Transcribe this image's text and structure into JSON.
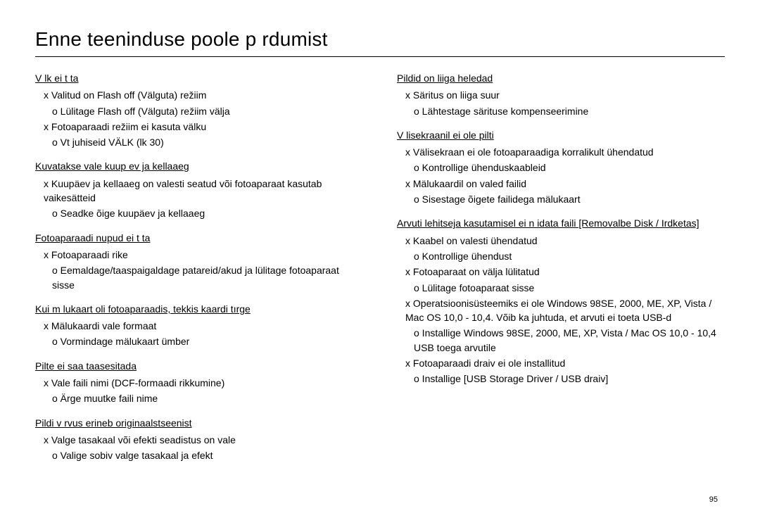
{
  "title": "Enne teeninduse poole p rdumist",
  "pageNumber": "95",
  "left": [
    {
      "heading": "V lk ei t ta",
      "items": [
        {
          "x": "Valitud on Flash off (Välguta) režiim",
          "o": [
            "Lülitage Flash off (Välguta) režiim välja"
          ]
        },
        {
          "x": "Fotoaparaadi režiim ei kasuta välku",
          "o": [
            "Vt juhiseid VÄLK (lk 30)"
          ]
        }
      ]
    },
    {
      "heading": "Kuvatakse vale kuup ev ja kellaaeg",
      "items": [
        {
          "x": "Kuupäev ja kellaaeg on valesti seatud või fotoaparaat kasutab vaikesätteid",
          "o": [
            "Seadke õige kuupäev ja kellaaeg"
          ]
        }
      ]
    },
    {
      "heading": "Fotoaparaadi nupud ei t ta",
      "items": [
        {
          "x": "Fotoaparaadi rike",
          "o": [
            "Eemaldage/taaspaigaldage patareid/akud ja lülitage fotoaparaat sisse"
          ]
        }
      ]
    },
    {
      "heading": "Kui m lukaart oli fotoaparaadis, tekkis kaardi tırge",
      "items": [
        {
          "x": "Mälukaardi vale formaat",
          "o": [
            "Vormindage mälukaart ümber"
          ]
        }
      ]
    },
    {
      "heading": "Pilte ei saa taasesitada",
      "items": [
        {
          "x": "Vale faili nimi (DCF-formaadi rikkumine)",
          "o": [
            "Ärge muutke faili nime"
          ]
        }
      ]
    },
    {
      "heading": "Pildi v rvus erineb originaalstseenist",
      "items": [
        {
          "x": "Valge tasakaal või efekti seadistus on vale",
          "o": [
            "Valige sobiv valge tasakaal ja efekt"
          ]
        }
      ]
    }
  ],
  "right": [
    {
      "heading": "Pildid on liiga heledad",
      "items": [
        {
          "x": "Säritus on liiga suur",
          "o": [
            "Lähtestage särituse kompenseerimine"
          ]
        }
      ]
    },
    {
      "heading": "V lisekraanil ei ole pilti",
      "items": [
        {
          "x": "Välisekraan ei ole fotoaparaadiga korralikult ühendatud",
          "o": [
            "Kontrollige ühenduskaableid"
          ]
        },
        {
          "x": "Mälukaardil on valed failid",
          "o": [
            "Sisestage õigete failidega mälukaart"
          ]
        }
      ]
    },
    {
      "heading": "Arvuti lehitseja kasutamisel ei n idata faili [Removalbe Disk / Irdketas]",
      "items": [
        {
          "x": "Kaabel on valesti ühendatud",
          "o": [
            "Kontrollige ühendust"
          ]
        },
        {
          "x": "Fotoaparaat on välja lülitatud",
          "o": [
            "Lülitage fotoaparaat sisse"
          ]
        },
        {
          "x": "Operatsioonisüsteemiks ei ole Windows 98SE, 2000, ME, XP, Vista / Mac OS 10,0 - 10,4. Võib ka juhtuda, et arvuti ei toeta USB-d",
          "o": [
            "Installige Windows 98SE, 2000, ME, XP, Vista / Mac OS 10,0 - 10,4 USB toega arvutile"
          ]
        },
        {
          "x": "Fotoaparaadi draiv ei ole installitud",
          "o": [
            "Installige [USB Storage Driver / USB draiv]"
          ]
        }
      ]
    }
  ]
}
